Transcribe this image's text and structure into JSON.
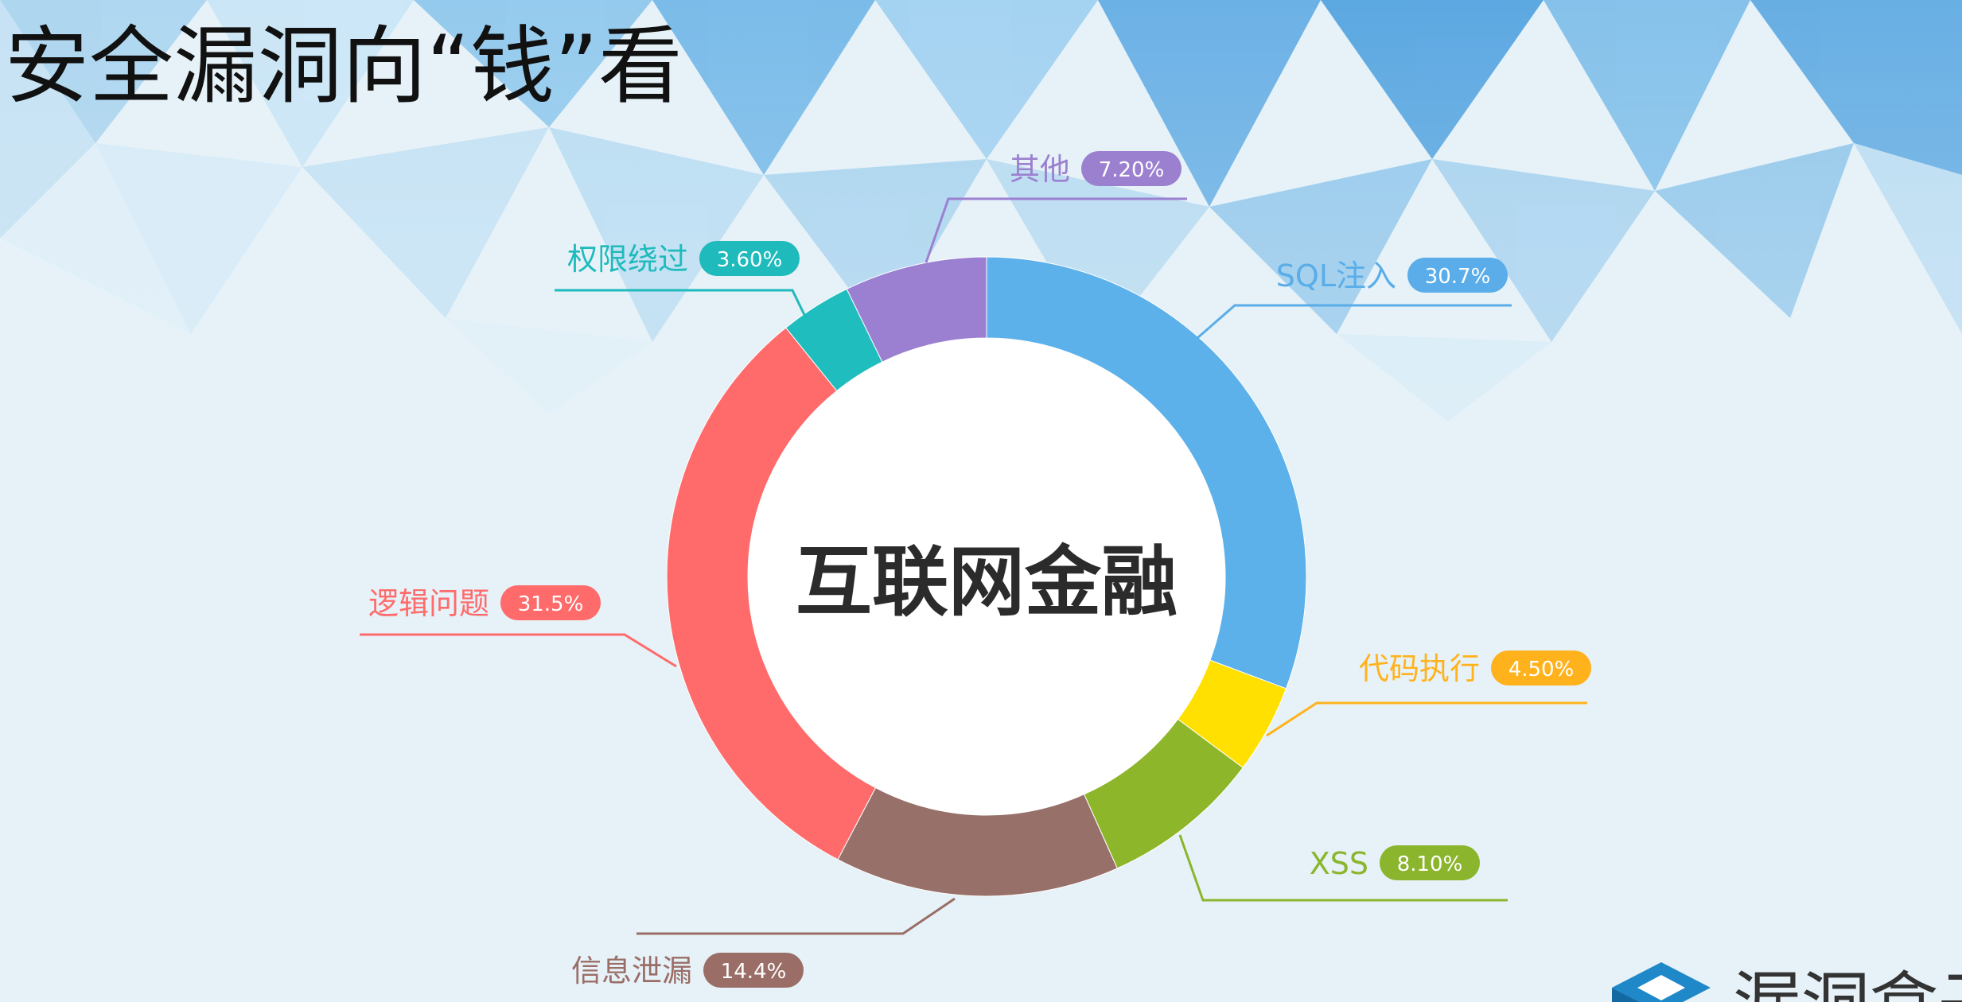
{
  "title": "安全漏洞向“钱”看",
  "logo_text": "漏洞盒子",
  "chart_data": {
    "type": "pie",
    "center_label": "互联网金融",
    "slices": [
      {
        "label": "SQL注入",
        "value": 30.7,
        "value_label": "30.7%",
        "color": "#5aade8"
      },
      {
        "label": "代码执行",
        "value": 4.5,
        "value_label": "4.50%",
        "color": "#ffb21c"
      },
      {
        "label": "XSS",
        "value": 8.1,
        "value_label": "8.10%",
        "color": "#8ab52c"
      },
      {
        "label": "信息泄漏",
        "value": 14.4,
        "value_label": "14.4%",
        "color": "#9a6e67"
      },
      {
        "label": "逻辑问题",
        "value": 31.5,
        "value_label": "31.5%",
        "color": "#ff6b6b"
      },
      {
        "label": "权限绕过",
        "value": 3.6,
        "value_label": "3.60%",
        "color": "#1fbabb"
      },
      {
        "label": "其他",
        "value": 7.2,
        "value_label": "7.20%",
        "color": "#9c80d0"
      }
    ],
    "segment_colors": [
      "#5cb1ea",
      "#ffe000",
      "#8db62a",
      "#977069",
      "#ff6b6b",
      "#20bdbe",
      "#9b80d2"
    ]
  }
}
